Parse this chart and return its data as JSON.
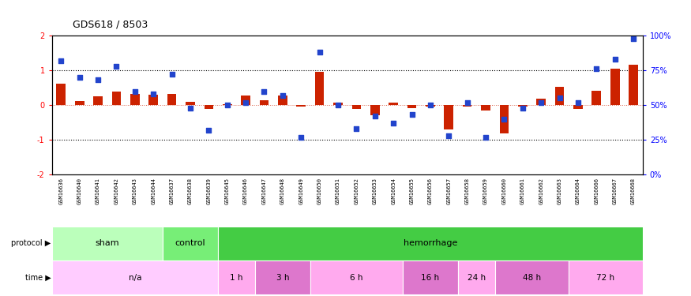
{
  "title": "GDS618 / 8503",
  "samples": [
    "GSM16636",
    "GSM16640",
    "GSM16641",
    "GSM16642",
    "GSM16643",
    "GSM16644",
    "GSM16637",
    "GSM16638",
    "GSM16639",
    "GSM16645",
    "GSM16646",
    "GSM16647",
    "GSM16648",
    "GSM16649",
    "GSM16650",
    "GSM16651",
    "GSM16652",
    "GSM16653",
    "GSM16654",
    "GSM16655",
    "GSM16656",
    "GSM16657",
    "GSM16658",
    "GSM16659",
    "GSM16660",
    "GSM16661",
    "GSM16662",
    "GSM16663",
    "GSM16664",
    "GSM16666",
    "GSM16667",
    "GSM16668"
  ],
  "log_ratio": [
    0.62,
    0.12,
    0.25,
    0.38,
    0.32,
    0.3,
    0.32,
    0.1,
    -0.12,
    0.03,
    0.28,
    0.15,
    0.28,
    -0.05,
    0.95,
    0.08,
    -0.1,
    -0.3,
    0.08,
    -0.08,
    -0.05,
    -0.7,
    -0.05,
    -0.15,
    -0.82,
    -0.05,
    0.18,
    0.52,
    -0.12,
    0.42,
    1.05,
    1.15
  ],
  "percentile": [
    82,
    70,
    68,
    78,
    60,
    58,
    72,
    48,
    32,
    50,
    52,
    60,
    57,
    27,
    88,
    50,
    33,
    42,
    37,
    43,
    50,
    28,
    52,
    27,
    40,
    48,
    52,
    55,
    52,
    76,
    83,
    98
  ],
  "bar_color": "#cc2200",
  "dot_color": "#2244cc",
  "label_bg_color": "#cccccc",
  "proto_sham_color": "#bbffbb",
  "proto_control_color": "#77ee77",
  "proto_hemorrhage_color": "#44cc44",
  "time_na_color": "#ffccff",
  "time_1h_color": "#ffaaee",
  "time_3h_color": "#dd77cc",
  "time_6h_color": "#ffaaee",
  "time_16h_color": "#dd77cc",
  "time_24h_color": "#ffaaee",
  "time_48h_color": "#dd77cc",
  "time_72h_color": "#ffaaee"
}
